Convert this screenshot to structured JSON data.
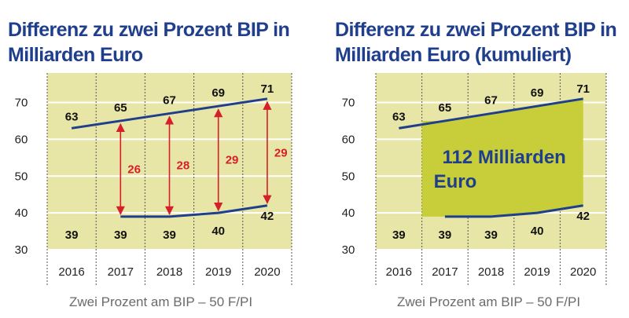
{
  "chart_data": [
    {
      "type": "line",
      "title": "Differenz zu zwei Prozent BIP in Milliarden Euro",
      "title_lines": [
        "Differenz zu zwei Prozent BIP in",
        "Milliarden Euro"
      ],
      "categories": [
        "2016",
        "2017",
        "2018",
        "2019",
        "2020"
      ],
      "series": [
        {
          "values": [
            63,
            65,
            67,
            69,
            71
          ],
          "labels": [
            "63",
            "65",
            "67",
            "69",
            "71"
          ],
          "color": "#1f3f8c"
        },
        {
          "values": [
            39,
            39,
            39,
            40,
            42
          ],
          "labels": [
            "39",
            "39",
            "39",
            "40",
            "42"
          ],
          "color": "#1f3f8c"
        }
      ],
      "differences": [
        {
          "category": "2017",
          "value": 26,
          "label": "26"
        },
        {
          "category": "2018",
          "value": 28,
          "label": "28"
        },
        {
          "category": "2019",
          "value": 29,
          "label": "29"
        },
        {
          "category": "2020",
          "value": 29,
          "label": "29"
        }
      ],
      "yticks": [
        "30",
        "40",
        "50",
        "60",
        "70"
      ],
      "ylim": [
        30,
        78
      ],
      "grid": true,
      "plot_background": "#e8e6a6",
      "arrow_color": "#d51f2a",
      "source": "Zwei Prozent am BIP – 50 F/PI"
    },
    {
      "type": "area",
      "title": "Differenz zu zwei Prozent BIP in Milliarden Euro (kumuliert)",
      "title_lines": [
        "Differenz zu zwei Prozent BIP in",
        "Milliarden Euro (kumuliert)"
      ],
      "categories": [
        "2016",
        "2017",
        "2018",
        "2019",
        "2020"
      ],
      "series": [
        {
          "values": [
            63,
            65,
            67,
            69,
            71
          ],
          "labels": [
            "63",
            "65",
            "67",
            "69",
            "71"
          ],
          "color": "#1f3f8c"
        },
        {
          "values": [
            39,
            39,
            39,
            40,
            42
          ],
          "labels": [
            "39",
            "39",
            "39",
            "40",
            "42"
          ],
          "color": "#1f3f8c"
        }
      ],
      "area_from": "2017",
      "area_label_lines": [
        "112 Milliarden",
        "Euro"
      ],
      "area_color": "#c8cd3a",
      "yticks": [
        "30",
        "40",
        "50",
        "60",
        "70"
      ],
      "ylim": [
        30,
        78
      ],
      "grid": true,
      "plot_background": "#e8e6a6",
      "source": "Zwei Prozent am BIP – 50 F/PI"
    }
  ]
}
